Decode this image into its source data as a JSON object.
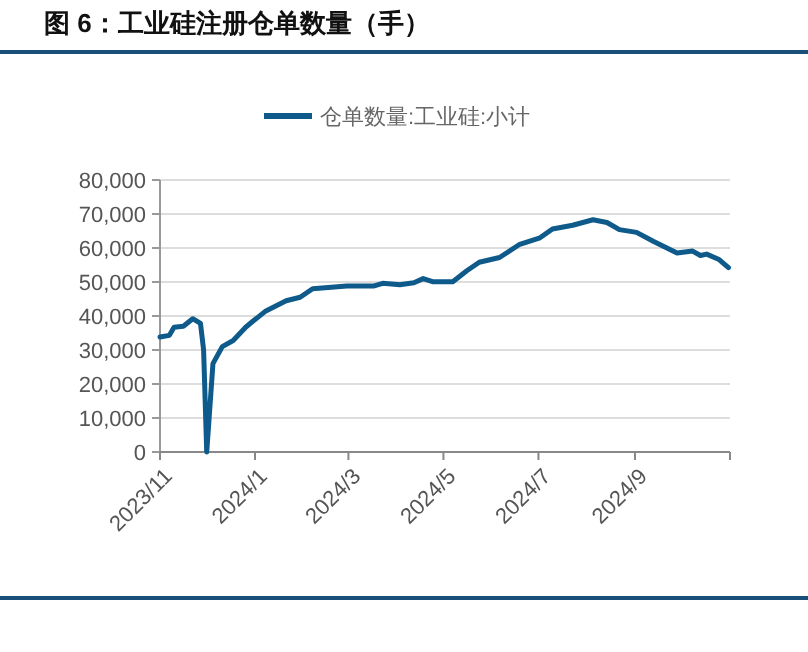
{
  "chart_data": {
    "type": "line",
    "title": "图 6：工业硅注册仓单数量（手）",
    "x": [
      "2023-11-01",
      "2023-11-07",
      "2023-11-10",
      "2023-11-16",
      "2023-11-22",
      "2023-11-27",
      "2023-11-29",
      "2023-12-01",
      "2023-12-05",
      "2023-12-11",
      "2023-12-18",
      "2023-12-26",
      "2023-12-31",
      "2024-01-08",
      "2024-01-21",
      "2024-01-30",
      "2024-02-07",
      "2024-02-29",
      "2024-03-17",
      "2024-03-23",
      "2024-04-03",
      "2024-04-12",
      "2024-04-18",
      "2024-04-24",
      "2024-05-07",
      "2024-05-16",
      "2024-05-24",
      "2024-06-06",
      "2024-06-19",
      "2024-07-02",
      "2024-07-10",
      "2024-07-23",
      "2024-08-05",
      "2024-08-14",
      "2024-08-22",
      "2024-09-02",
      "2024-09-13",
      "2024-09-28",
      "2024-10-08",
      "2024-10-13",
      "2024-10-17",
      "2024-10-25",
      "2024-10-31"
    ],
    "series": [
      {
        "name": "仓单数量:工业硅:小计",
        "color": "#0e5a8a",
        "values": [
          33800,
          34300,
          36700,
          37000,
          39200,
          37800,
          30000,
          0,
          26000,
          31000,
          32800,
          36700,
          38600,
          41500,
          44500,
          45500,
          48000,
          48800,
          48800,
          49600,
          49200,
          49800,
          51000,
          50100,
          50100,
          53300,
          55800,
          57200,
          61100,
          63000,
          65600,
          66700,
          68300,
          67500,
          65400,
          64600,
          61900,
          58500,
          59100,
          57800,
          58200,
          56600,
          54200
        ]
      }
    ],
    "xlim": [
      "2023-11-01",
      "2024-11-01"
    ],
    "xticks": [
      {
        "value": "2023-11-01",
        "label": "2023/11"
      },
      {
        "value": "2024-01-01",
        "label": "2024/1"
      },
      {
        "value": "2024-03-01",
        "label": "2024/3"
      },
      {
        "value": "2024-05-01",
        "label": "2024/5"
      },
      {
        "value": "2024-07-01",
        "label": "2024/7"
      },
      {
        "value": "2024-09-01",
        "label": "2024/9"
      },
      {
        "value": "2024-11-01",
        "label": null
      }
    ],
    "ylim": [
      0,
      80000
    ],
    "yticks": [
      {
        "value": 0,
        "label": "0"
      },
      {
        "value": 10000,
        "label": "10,000"
      },
      {
        "value": 20000,
        "label": "20,000"
      },
      {
        "value": 30000,
        "label": "30,000"
      },
      {
        "value": 40000,
        "label": "40,000"
      },
      {
        "value": 50000,
        "label": "50,000"
      },
      {
        "value": 60000,
        "label": "60,000"
      },
      {
        "value": 70000,
        "label": "70,000"
      },
      {
        "value": 80000,
        "label": "80,000"
      }
    ],
    "grid": "y",
    "legend": "top",
    "marker": "none",
    "line_style": "solid"
  }
}
